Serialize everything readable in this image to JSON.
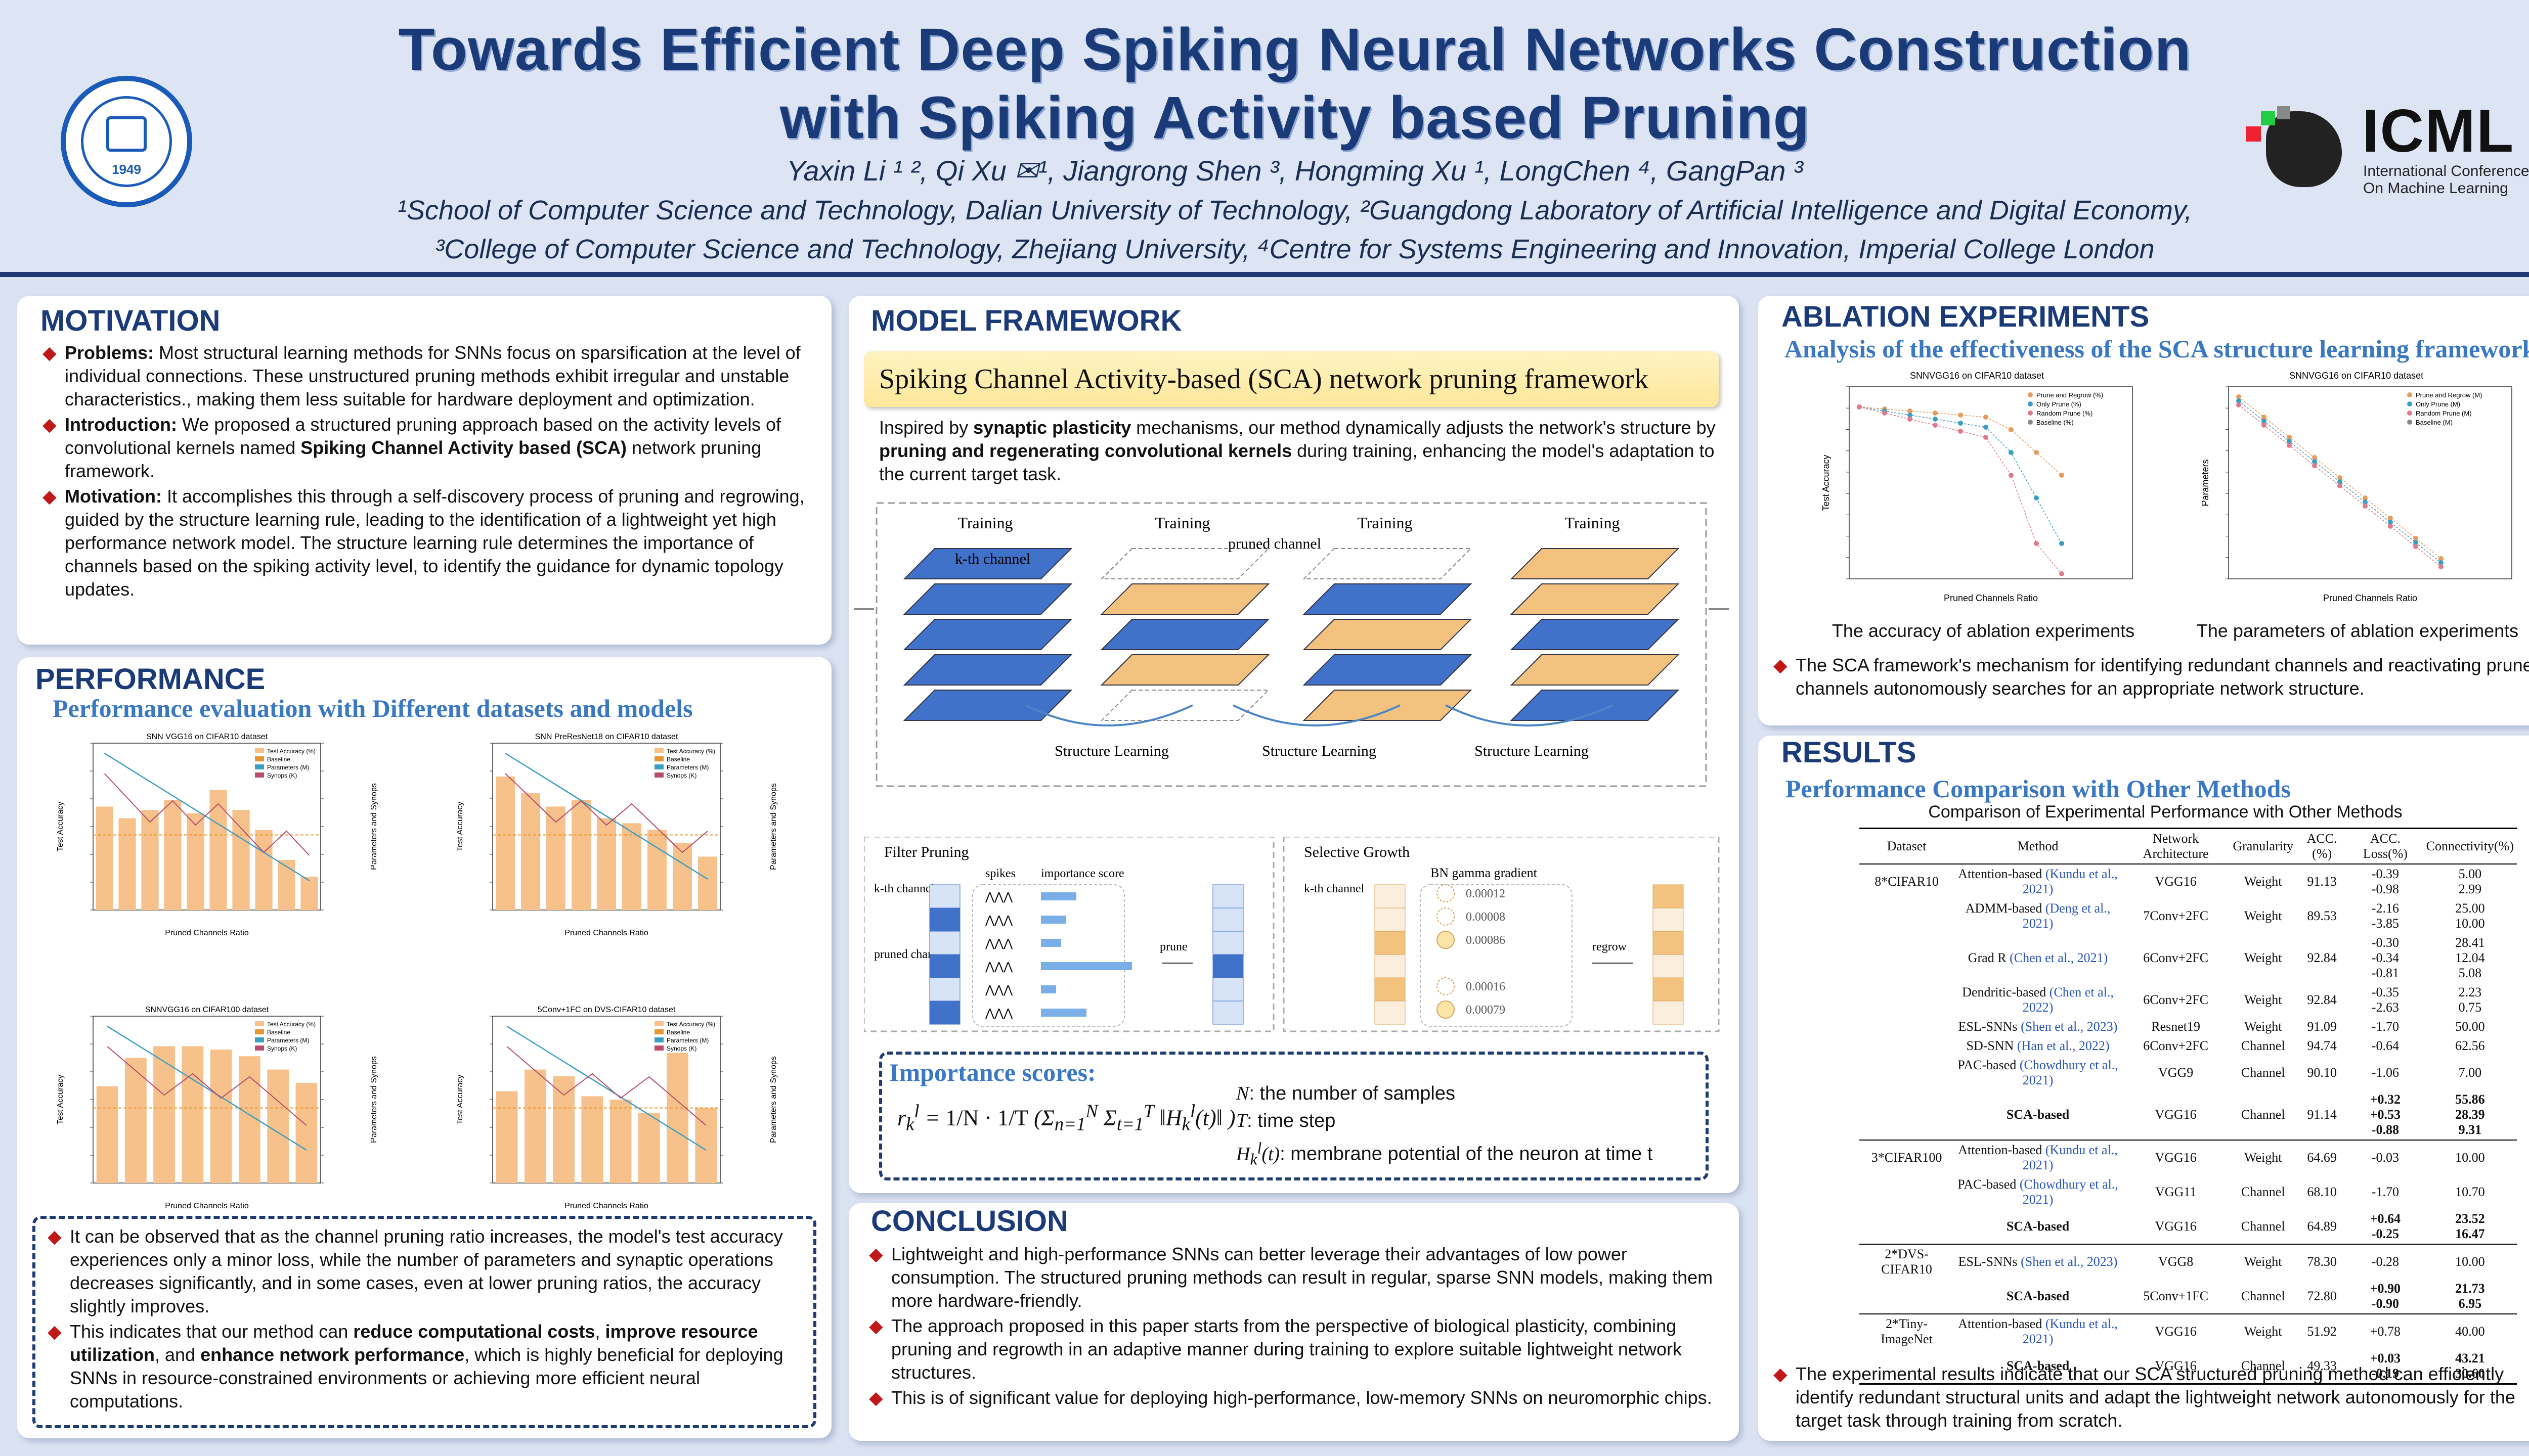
{
  "header": {
    "title_line1": "Towards Efficient Deep Spiking Neural Networks Construction",
    "title_line2": "with Spiking Activity based Pruning",
    "authors": "Yaxin Li ¹ ², Qi Xu ✉¹, Jiangrong Shen ³, Hongming Xu ¹, LongChen ⁴, GangPan ³",
    "affiliations_line1": "¹School of Computer Science and Technology, Dalian University of Technology, ²Guangdong Laboratory of Artificial Intelligence and Digital Economy,",
    "affiliations_line2": "³College of Computer Science and Technology, Zhejiang University, ⁴Centre for Systems Engineering and Innovation, Imperial College London",
    "logo_left_text": "DALIAN UNIVERSITY OF TECHNOLOGY",
    "logo_left_year": "1949",
    "logo_right_name": "ICML",
    "logo_right_sub1": "International Conference",
    "logo_right_sub2": "On Machine Learning"
  },
  "motivation": {
    "title": "MOTIVATION",
    "items": [
      {
        "lead": "Problems:",
        "text": " Most structural learning methods for SNNs focus on sparsification at the level of individual connections. These unstructured pruning methods exhibit irregular and unstable characteristics., making them less suitable for hardware deployment and optimization."
      },
      {
        "lead": "Introduction:",
        "text": " We proposed a structured pruning approach based on the activity levels of convolutional kernels named ",
        "bold": "Spiking Channel Activity based (SCA)",
        "tail": " network pruning framework."
      },
      {
        "lead": "Motivation:",
        "text": " It accomplishes this through a self-discovery process of pruning and regrowing, guided by the structure learning rule, leading to the identification of a lightweight yet high performance network model. The structure learning rule determines the importance of channels based on the spiking activity level, to identify the guidance for dynamic topology updates."
      }
    ]
  },
  "performance": {
    "title": "PERFORMANCE",
    "subtitle": "Performance evaluation with Different datasets and models",
    "charts": [
      {
        "title": "SNN VGG16 on CIFAR10 dataset",
        "xlabel": "Pruned Channels Ratio",
        "ylabel": "Test Accuracy",
        "y2label": "Parameters and Synops"
      },
      {
        "title": "SNN PreResNet18 on CIFAR10 dataset",
        "xlabel": "Pruned Channels Ratio",
        "ylabel": "Test Accuracy",
        "y2label": "Parameters and Synops"
      },
      {
        "title": "SNNVGG16 on CIFAR100 dataset",
        "xlabel": "Pruned Channels Ratio",
        "ylabel": "Test Accuracy",
        "y2label": "Parameters and Synops"
      },
      {
        "title": "5Conv+1FC on DVS-CIFAR10 dataset",
        "xlabel": "Pruned Channels Ratio",
        "ylabel": "Test Accuracy",
        "y2label": "Parameters and Synops"
      }
    ],
    "legend": [
      "Test Accuracy (%)",
      "Baseline",
      "Parameters (M)",
      "Synops (K)"
    ],
    "notes": [
      {
        "text": "It can be observed that as the channel pruning ratio increases, the model's test accuracy experiences only a minor loss, while the number of parameters and synaptic operations decreases significantly, and in some cases, even at lower pruning ratios, the accuracy slightly improves."
      },
      {
        "pre": "This indicates that our method can ",
        "b1": "reduce computational costs",
        "m1": ", ",
        "b2": "improve resource utilization",
        "m2": ", and ",
        "b3": "enhance network performance",
        "post": ", which is highly beneficial for deploying SNNs in resource-constrained environments or achieving more efficient neural computations."
      }
    ]
  },
  "framework": {
    "title": "MODEL FRAMEWORK",
    "banner": "Spiking Channel Activity-based (SCA) network pruning framework",
    "intro_pre": "Inspired by ",
    "intro_b1": "synaptic plasticity",
    "intro_mid": " mechanisms, our method dynamically adjusts the network's structure by ",
    "intro_b2": "pruning and regenerating convolutional kernels",
    "intro_post": " during training, enhancing the model's adaptation to the current target task.",
    "training_label": "Training",
    "kth_label": "k-th channel",
    "pruned_label": "pruned channel",
    "structure_learning": "Structure Learning",
    "filter_pruning": "Filter Pruning",
    "spikes": "spikes",
    "importance_score": "importance score",
    "kth_channel": "k-th channel",
    "pruned_channel": "pruned channel",
    "prune": "prune",
    "selective_growth": "Selective Growth",
    "bn_gamma": "BN gamma gradient",
    "regrow": "regrow",
    "gamma_values": [
      "0.00012",
      "0.00008",
      "0.00086",
      "0.00016",
      "0.00079"
    ],
    "importance_title": "Importance scores:",
    "def1": ": the number of samples",
    "def2": ": time step",
    "def3": ": membrane potential of the neuron at time t"
  },
  "conclusion": {
    "title": "CONCLUSION",
    "items": [
      "Lightweight and high-performance SNNs can better leverage their advantages of low power consumption. The structured pruning methods can result in regular, sparse SNN models, making them more hardware-friendly.",
      "The approach proposed in this paper starts from the perspective of biological plasticity, combining pruning and regrowth in an adaptive manner during training to explore suitable lightweight network structures.",
      "This is of significant value for deploying high-performance, low-memory SNNs on neuromorphic chips."
    ]
  },
  "ablation": {
    "title": "ABLATION EXPERIMENTS",
    "subtitle": "Analysis of the effectiveness of the SCA structure learning framework",
    "chart1_title": "SNNVGG16 on CIFAR10 dataset",
    "chart2_title": "SNNVGG16 on CIFAR10 dataset",
    "chart1_caption": "The accuracy of ablation experiments",
    "chart2_caption": "The parameters of ablation experiments",
    "xlabel": "Pruned Channels Ratio",
    "ylabel1": "Test Accuracy",
    "ylabel2": "Parameters",
    "legend1": [
      "Prune and Regrow (%)",
      "Only Prune (%)",
      "Random Prune (%)",
      "Baseline (%)"
    ],
    "legend2": [
      "Prune and Regrow (M)",
      "Only Prune (M)",
      "Random Prune (M)",
      "Baseline (M)"
    ],
    "note": "The SCA framework's mechanism for identifying redundant channels and reactivating pruned channels autonomously searches for an appropriate network structure."
  },
  "results": {
    "title": "RESULTS",
    "subtitle": "Performance Comparison with Other Methods",
    "table_caption": "Comparison of Experimental Performance with Other Methods",
    "headers": [
      "Dataset",
      "Method",
      "Network Architecture",
      "Granularity",
      "ACC.(%)",
      "ACC. Loss(%)",
      "Connectivity(%)"
    ],
    "rows": [
      {
        "ds": "8*CIFAR10",
        "m": "Attention-based",
        "c": "(Kundu et al., 2021)",
        "net": "VGG16",
        "g": "Weight",
        "acc": "91.13",
        "loss": "-0.39\n-0.98",
        "conn": "5.00\n2.99",
        "bold": false
      },
      {
        "ds": "",
        "m": "ADMM-based",
        "c": "(Deng et al., 2021)",
        "net": "7Conv+2FC",
        "g": "Weight",
        "acc": "89.53",
        "loss": "-2.16\n-3.85",
        "conn": "25.00\n10.00",
        "bold": false
      },
      {
        "ds": "",
        "m": "Grad R",
        "c": "(Chen et al., 2021)",
        "net": "6Conv+2FC",
        "g": "Weight",
        "acc": "92.84",
        "loss": "-0.30\n-0.34\n-0.81",
        "conn": "28.41\n12.04\n5.08",
        "bold": false
      },
      {
        "ds": "",
        "m": "Dendritic-based",
        "c": "(Chen et al., 2022)",
        "net": "6Conv+2FC",
        "g": "Weight",
        "acc": "92.84",
        "loss": "-0.35\n-2.63",
        "conn": "2.23\n0.75",
        "bold": false
      },
      {
        "ds": "",
        "m": "ESL-SNNs",
        "c": "(Shen et al., 2023)",
        "net": "Resnet19",
        "g": "Weight",
        "acc": "91.09",
        "loss": "-1.70",
        "conn": "50.00",
        "bold": false
      },
      {
        "ds": "",
        "m": "SD-SNN",
        "c": "(Han et al., 2022)",
        "net": "6Conv+2FC",
        "g": "Channel",
        "acc": "94.74",
        "loss": "-0.64",
        "conn": "62.56",
        "bold": false
      },
      {
        "ds": "",
        "m": "PAC-based",
        "c": "(Chowdhury et al., 2021)",
        "net": "VGG9",
        "g": "Channel",
        "acc": "90.10",
        "loss": "-1.06",
        "conn": "7.00",
        "bold": false
      },
      {
        "ds": "",
        "m": "SCA-based",
        "c": "",
        "net": "VGG16",
        "g": "Channel",
        "acc": "91.14",
        "loss": "+0.32\n+0.53\n-0.88",
        "conn": "55.86\n28.39\n9.31",
        "bold": true
      },
      {
        "ds": "3*CIFAR100",
        "m": "Attention-based",
        "c": "(Kundu et al., 2021)",
        "net": "VGG16",
        "g": "Weight",
        "acc": "64.69",
        "loss": "-0.03",
        "conn": "10.00",
        "bold": false
      },
      {
        "ds": "",
        "m": "PAC-based",
        "c": "(Chowdhury et al., 2021)",
        "net": "VGG11",
        "g": "Channel",
        "acc": "68.10",
        "loss": "-1.70",
        "conn": "10.70",
        "bold": false
      },
      {
        "ds": "",
        "m": "SCA-based",
        "c": "",
        "net": "VGG16",
        "g": "Channel",
        "acc": "64.89",
        "loss": "+0.64\n-0.25",
        "conn": "23.52\n16.47",
        "bold": true
      },
      {
        "ds": "2*DVS-CIFAR10",
        "m": "ESL-SNNs",
        "c": "(Shen et al., 2023)",
        "net": "VGG8",
        "g": "Weight",
        "acc": "78.30",
        "loss": "-0.28",
        "conn": "10.00",
        "bold": false
      },
      {
        "ds": "",
        "m": "SCA-based",
        "c": "",
        "net": "5Conv+1FC",
        "g": "Channel",
        "acc": "72.80",
        "loss": "+0.90\n-0.90",
        "conn": "21.73\n6.95",
        "bold": true
      },
      {
        "ds": "2*Tiny-ImageNet",
        "m": "Attention-based",
        "c": "(Kundu et al., 2021)",
        "net": "VGG16",
        "g": "Weight",
        "acc": "51.92",
        "loss": "+0.78",
        "conn": "40.00",
        "bold": false
      },
      {
        "ds": "",
        "m": "SCA-based",
        "c": "",
        "net": "VGG16",
        "g": "Channel",
        "acc": "49.33",
        "loss": "+0.03\n-0.19",
        "conn": "43.21\n30.60",
        "bold": true
      }
    ],
    "note": "The experimental results indicate that our SCA structured pruning method can efficiently identify redundant structural units and adapt the lightweight network autonomously for the target task through training from scratch."
  }
}
